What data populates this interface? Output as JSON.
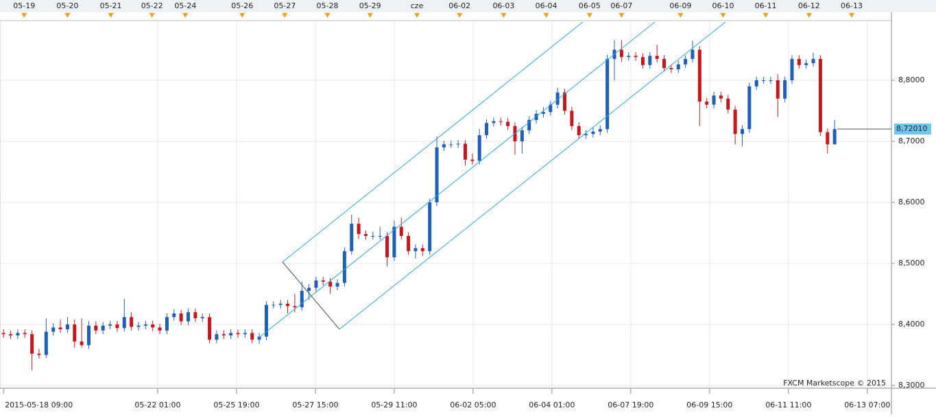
{
  "chart_data": {
    "type": "candlestick",
    "watermark": "FXCM Marketscope © 2015",
    "colors": {
      "up": "#1f5fb5",
      "down": "#c8161d"
    },
    "grid": true,
    "xlim": [
      -0.5,
      125
    ],
    "ylim": [
      8.2955,
      8.8978
    ],
    "yticks": [
      {
        "value": 8.3,
        "label": "8,3000"
      },
      {
        "value": 8.4,
        "label": "8,4000"
      },
      {
        "value": 8.5,
        "label": "8,5000"
      },
      {
        "value": 8.6,
        "label": "8,6000"
      },
      {
        "value": 8.7,
        "label": "8,7000"
      },
      {
        "value": 8.8,
        "label": "8,8000"
      }
    ],
    "current_price": {
      "value": 8.7201,
      "label": "8,72010"
    },
    "xticks": [
      {
        "value": 0,
        "label": "2015-05-18 09:00"
      },
      {
        "value": 21.7,
        "label": "05-22 01:00"
      },
      {
        "value": 32.8,
        "label": "05-25 19:00"
      },
      {
        "value": 43.9,
        "label": "05-27 15:00"
      },
      {
        "value": 55,
        "label": "05-29 11:00"
      },
      {
        "value": 66.1,
        "label": "06-02 05:00"
      },
      {
        "value": 77.2,
        "label": "06-04 01:00"
      },
      {
        "value": 88.3,
        "label": "06-07 19:00"
      },
      {
        "value": 99.4,
        "label": "06-09 15:00"
      },
      {
        "value": 110.5,
        "label": "06-11 11:00"
      },
      {
        "value": 121.6,
        "label": "06-13 07:00"
      }
    ],
    "date_marks": [
      {
        "value": 2.9,
        "label": "05-19"
      },
      {
        "value": 9.0,
        "label": "05-20"
      },
      {
        "value": 15.1,
        "label": "05-21"
      },
      {
        "value": 20.9,
        "label": "05-22"
      },
      {
        "value": 25.6,
        "label": "05-24"
      },
      {
        "value": 33.6,
        "label": "05-26"
      },
      {
        "value": 39.6,
        "label": "05-27"
      },
      {
        "value": 45.6,
        "label": "05-28"
      },
      {
        "value": 51.6,
        "label": "05-29"
      },
      {
        "value": 58.2,
        "label": "cze"
      },
      {
        "value": 64.2,
        "label": "06-02"
      },
      {
        "value": 70.4,
        "label": "06-03"
      },
      {
        "value": 76.4,
        "label": "06-04"
      },
      {
        "value": 82.5,
        "label": "06-05"
      },
      {
        "value": 87.0,
        "label": "06-07"
      },
      {
        "value": 95.3,
        "label": "06-09"
      },
      {
        "value": 101.3,
        "label": "06-10"
      },
      {
        "value": 107.3,
        "label": "06-11"
      },
      {
        "value": 113.4,
        "label": "06-12"
      },
      {
        "value": 119.4,
        "label": "06-13"
      }
    ],
    "open": [
      8.386,
      8.384,
      8.382,
      8.386,
      8.384,
      8.352,
      8.35,
      8.388,
      8.395,
      8.392,
      8.4,
      8.372,
      8.366,
      8.398,
      8.39,
      8.398,
      8.4,
      8.394,
      8.412,
      8.396,
      8.398,
      8.4,
      8.395,
      8.39,
      8.412,
      8.418,
      8.405,
      8.42,
      8.41,
      8.412,
      8.375,
      8.384,
      8.382,
      8.386,
      8.384,
      8.386,
      8.375,
      8.38,
      8.432,
      8.432,
      8.434,
      8.43,
      8.428,
      8.455,
      8.46,
      8.472,
      8.47,
      8.462,
      8.468,
      8.52,
      8.565,
      8.548,
      8.545,
      8.545,
      8.545,
      8.51,
      8.56,
      8.545,
      8.52,
      8.525,
      8.52,
      8.6,
      8.69,
      8.695,
      8.695,
      8.696,
      8.67,
      8.668,
      8.71,
      8.73,
      8.733,
      8.732,
      8.725,
      8.7,
      8.718,
      8.735,
      8.745,
      8.748,
      8.76,
      8.78,
      8.75,
      8.725,
      8.71,
      8.712,
      8.716,
      8.72,
      8.835,
      8.85,
      8.838,
      8.84,
      8.838,
      8.825,
      8.84,
      8.835,
      8.82,
      8.818,
      8.826,
      8.835,
      8.85,
      8.765,
      8.76,
      8.775,
      8.77,
      8.752,
      8.712,
      8.72,
      8.79,
      8.8,
      8.8,
      8.8,
      8.77,
      8.8,
      8.835,
      8.825,
      8.828,
      8.835,
      8.715,
      8.695
    ],
    "high": [
      8.392,
      8.39,
      8.392,
      8.392,
      8.39,
      8.36,
      8.41,
      8.402,
      8.408,
      8.412,
      8.408,
      8.41,
      8.405,
      8.405,
      8.404,
      8.406,
      8.406,
      8.442,
      8.42,
      8.404,
      8.406,
      8.406,
      8.401,
      8.418,
      8.425,
      8.424,
      8.426,
      8.426,
      8.418,
      8.418,
      8.39,
      8.39,
      8.392,
      8.392,
      8.392,
      8.392,
      8.386,
      8.438,
      8.438,
      8.44,
      8.44,
      8.45,
      8.47,
      8.466,
      8.478,
      8.478,
      8.476,
      8.474,
      8.526,
      8.58,
      8.575,
      8.554,
      8.552,
      8.56,
      8.551,
      8.57,
      8.575,
      8.551,
      8.531,
      8.531,
      8.606,
      8.708,
      8.701,
      8.701,
      8.702,
      8.702,
      8.68,
      8.72,
      8.736,
      8.739,
      8.739,
      8.738,
      8.731,
      8.724,
      8.741,
      8.751,
      8.756,
      8.766,
      8.788,
      8.786,
      8.756,
      8.731,
      8.718,
      8.722,
      8.726,
      8.842,
      8.866,
      8.866,
      8.846,
      8.846,
      8.844,
      8.846,
      8.858,
      8.841,
      8.826,
      8.832,
      8.841,
      8.865,
      8.856,
      8.771,
      8.781,
      8.781,
      8.776,
      8.758,
      8.726,
      8.796,
      8.806,
      8.806,
      8.806,
      8.81,
      8.806,
      8.841,
      8.841,
      8.834,
      8.845,
      8.841,
      8.721,
      8.735
    ],
    "low": [
      8.378,
      8.376,
      8.376,
      8.378,
      8.325,
      8.344,
      8.345,
      8.382,
      8.386,
      8.386,
      8.362,
      8.362,
      8.36,
      8.384,
      8.384,
      8.392,
      8.388,
      8.388,
      8.39,
      8.39,
      8.392,
      8.389,
      8.384,
      8.384,
      8.406,
      8.399,
      8.399,
      8.404,
      8.404,
      8.369,
      8.369,
      8.376,
      8.376,
      8.378,
      8.378,
      8.369,
      8.368,
      8.374,
      8.426,
      8.426,
      8.418,
      8.42,
      8.422,
      8.44,
      8.454,
      8.464,
      8.45,
      8.456,
      8.462,
      8.514,
      8.54,
      8.539,
      8.539,
      8.539,
      8.495,
      8.504,
      8.539,
      8.514,
      8.508,
      8.512,
      8.514,
      8.594,
      8.684,
      8.689,
      8.689,
      8.66,
      8.662,
      8.662,
      8.704,
      8.724,
      8.726,
      8.719,
      8.678,
      8.68,
      8.712,
      8.729,
      8.739,
      8.742,
      8.754,
      8.744,
      8.719,
      8.704,
      8.704,
      8.706,
      8.71,
      8.714,
      8.8,
      8.83,
      8.832,
      8.832,
      8.819,
      8.819,
      8.829,
      8.814,
      8.812,
      8.812,
      8.82,
      8.829,
      8.725,
      8.754,
      8.754,
      8.764,
      8.746,
      8.695,
      8.692,
      8.714,
      8.784,
      8.794,
      8.794,
      8.74,
      8.764,
      8.794,
      8.819,
      8.819,
      8.822,
      8.709,
      8.68,
      8.7
    ],
    "close": [
      8.384,
      8.382,
      8.386,
      8.384,
      8.352,
      8.35,
      8.388,
      8.395,
      8.392,
      8.4,
      8.372,
      8.366,
      8.398,
      8.39,
      8.398,
      8.4,
      8.394,
      8.412,
      8.396,
      8.398,
      8.4,
      8.395,
      8.39,
      8.412,
      8.418,
      8.405,
      8.42,
      8.41,
      8.412,
      8.375,
      8.384,
      8.382,
      8.386,
      8.384,
      8.386,
      8.375,
      8.38,
      8.432,
      8.432,
      8.434,
      8.43,
      8.428,
      8.455,
      8.46,
      8.472,
      8.47,
      8.462,
      8.468,
      8.52,
      8.565,
      8.548,
      8.545,
      8.545,
      8.545,
      8.51,
      8.56,
      8.545,
      8.52,
      8.525,
      8.52,
      8.6,
      8.69,
      8.695,
      8.695,
      8.696,
      8.67,
      8.668,
      8.71,
      8.73,
      8.733,
      8.732,
      8.725,
      8.7,
      8.718,
      8.735,
      8.745,
      8.748,
      8.76,
      8.78,
      8.75,
      8.725,
      8.71,
      8.712,
      8.716,
      8.72,
      8.835,
      8.85,
      8.838,
      8.84,
      8.838,
      8.825,
      8.84,
      8.835,
      8.82,
      8.818,
      8.826,
      8.835,
      8.85,
      8.765,
      8.76,
      8.775,
      8.77,
      8.752,
      8.712,
      8.72,
      8.79,
      8.8,
      8.8,
      8.8,
      8.77,
      8.8,
      8.835,
      8.825,
      8.828,
      8.835,
      8.715,
      8.695,
      8.72
    ]
  }
}
